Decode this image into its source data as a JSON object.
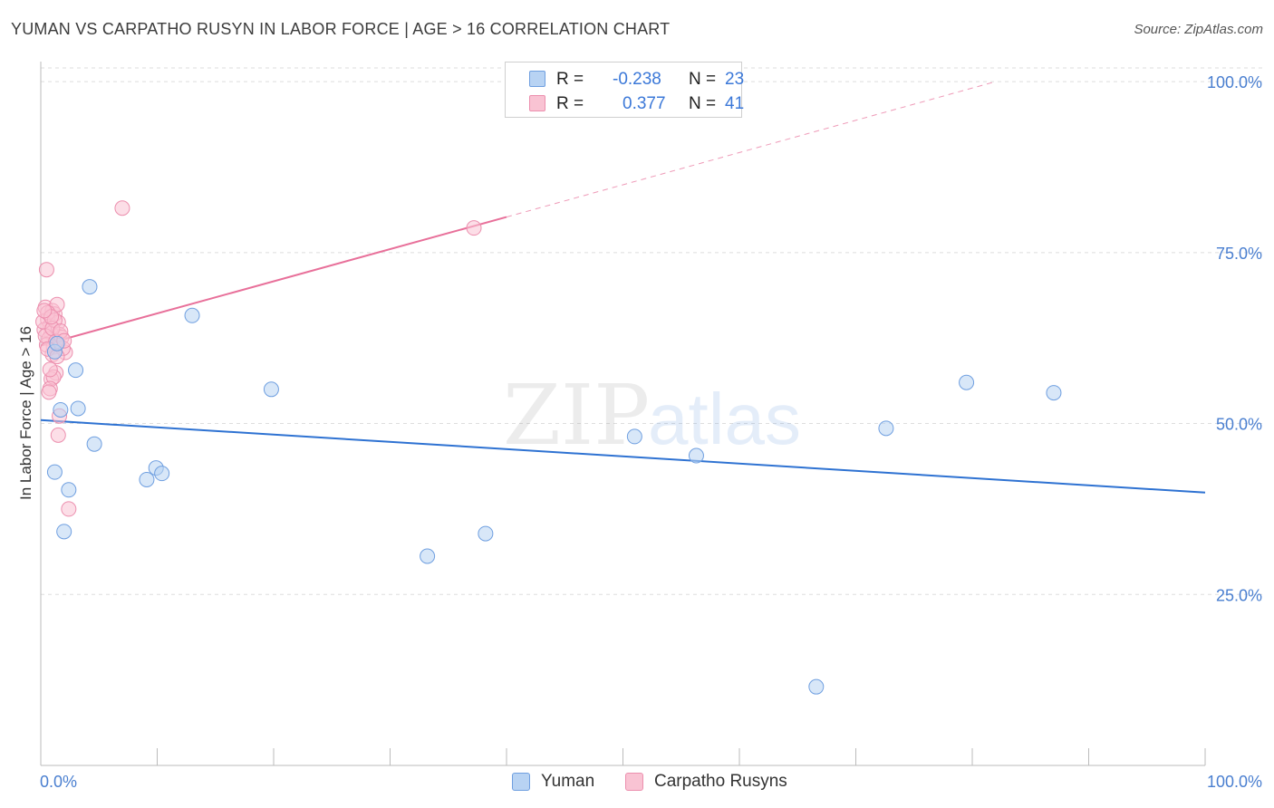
{
  "header": {
    "title": "YUMAN VS CARPATHO RUSYN IN LABOR FORCE | AGE > 16 CORRELATION CHART",
    "source": "Source: ZipAtlas.com"
  },
  "legend": {
    "rows": [
      {
        "r_label": "R =",
        "r_value": "-0.238",
        "n_label": "N =",
        "n_value": "23"
      },
      {
        "r_label": "R =",
        "r_value": "0.377",
        "n_label": "N =",
        "n_value": "41"
      }
    ]
  },
  "bottom_legend": {
    "series": [
      {
        "name": "Yuman"
      },
      {
        "name": "Carpatho Rusyns"
      }
    ]
  },
  "watermark": {
    "zip": "ZIP",
    "atlas": "atlas"
  },
  "colors": {
    "yuman_fill": "#b8d3f3",
    "yuman_stroke": "#6f9fe0",
    "yuman_line": "#2e72d2",
    "rusyn_fill": "#f9c3d3",
    "rusyn_stroke": "#ec8fae",
    "rusyn_line": "#e8709a",
    "tick_text": "#4a7fd0",
    "grid": "#dddddd"
  },
  "chart_data": {
    "type": "scatter",
    "title": "YUMAN VS CARPATHO RUSYN IN LABOR FORCE | AGE > 16 CORRELATION CHART",
    "xlabel": "",
    "ylabel": "In Labor Force | Age > 16",
    "x_range": [
      0,
      100
    ],
    "y_range": [
      0,
      102
    ],
    "x_tick_labels": [
      "0.0%",
      "100.0%"
    ],
    "y_ticks": [
      25,
      50,
      75,
      100
    ],
    "y_tick_labels": [
      "25.0%",
      "50.0%",
      "75.0%",
      "100.0%"
    ],
    "grid": "horizontal dashed",
    "legend_position": "top-center",
    "series": [
      {
        "name": "Yuman",
        "points": [
          [
            1.2,
            60.5
          ],
          [
            3.0,
            57.8
          ],
          [
            1.7,
            52.0
          ],
          [
            3.2,
            52.2
          ],
          [
            4.6,
            47.0
          ],
          [
            1.2,
            42.9
          ],
          [
            2.4,
            40.3
          ],
          [
            2.0,
            34.2
          ],
          [
            4.2,
            70.0
          ],
          [
            13.0,
            65.8
          ],
          [
            19.8,
            55.0
          ],
          [
            9.1,
            41.8
          ],
          [
            9.9,
            43.5
          ],
          [
            10.4,
            42.7
          ],
          [
            33.2,
            30.6
          ],
          [
            38.2,
            33.9
          ],
          [
            51.0,
            48.1
          ],
          [
            56.3,
            45.3
          ],
          [
            72.6,
            49.3
          ],
          [
            79.5,
            56.0
          ],
          [
            87.0,
            54.5
          ],
          [
            66.6,
            11.5
          ],
          [
            1.4,
            61.7
          ]
        ],
        "trend": {
          "x": [
            0,
            100
          ],
          "y": [
            50.5,
            39.9
          ]
        }
      },
      {
        "name": "Carpatho Rusyns",
        "points": [
          [
            7.0,
            81.5
          ],
          [
            37.2,
            78.6
          ],
          [
            0.5,
            72.5
          ],
          [
            0.4,
            67.0
          ],
          [
            1.0,
            66.5
          ],
          [
            1.2,
            66.0
          ],
          [
            1.4,
            67.4
          ],
          [
            0.6,
            65.2
          ],
          [
            0.8,
            64.3
          ],
          [
            0.9,
            63.2
          ],
          [
            1.5,
            64.8
          ],
          [
            0.3,
            63.7
          ],
          [
            0.7,
            62.4
          ],
          [
            1.1,
            61.2
          ],
          [
            1.6,
            63.0
          ],
          [
            1.8,
            62.6
          ],
          [
            0.5,
            61.5
          ],
          [
            2.1,
            60.4
          ],
          [
            1.0,
            60.1
          ],
          [
            0.2,
            64.9
          ],
          [
            1.3,
            57.4
          ],
          [
            0.9,
            56.5
          ],
          [
            1.1,
            56.8
          ],
          [
            0.8,
            55.1
          ],
          [
            0.7,
            54.6
          ],
          [
            1.6,
            51.1
          ],
          [
            1.5,
            48.3
          ],
          [
            2.4,
            37.5
          ],
          [
            1.9,
            61.0
          ],
          [
            0.6,
            66.2
          ],
          [
            1.2,
            65.1
          ],
          [
            0.4,
            62.8
          ],
          [
            1.0,
            63.9
          ],
          [
            1.3,
            62.0
          ],
          [
            0.9,
            65.6
          ],
          [
            0.3,
            66.5
          ],
          [
            1.7,
            63.5
          ],
          [
            2.0,
            62.1
          ],
          [
            0.6,
            60.9
          ],
          [
            1.4,
            59.8
          ],
          [
            0.8,
            57.9
          ]
        ],
        "trend": {
          "x": [
            0,
            40
          ],
          "y": [
            61.4,
            80.2
          ]
        },
        "trend_extension": {
          "x": [
            40,
            82
          ],
          "y": [
            80.2,
            100.0
          ]
        }
      }
    ]
  }
}
